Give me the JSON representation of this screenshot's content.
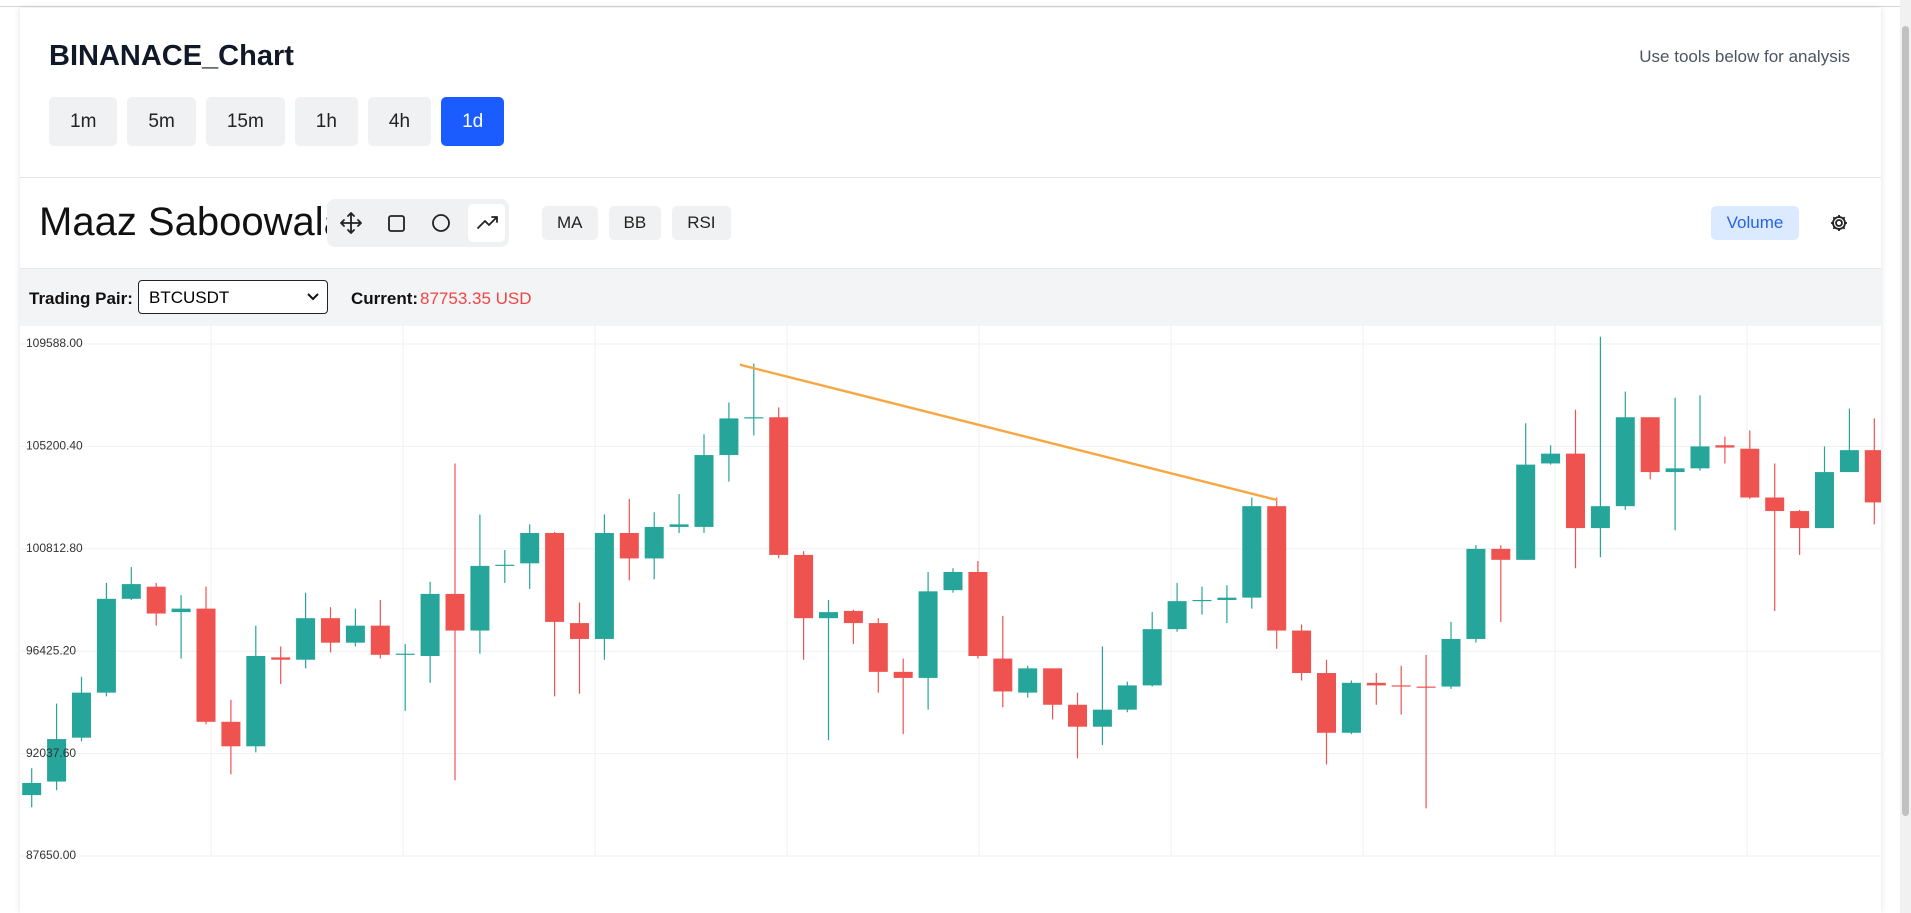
{
  "header": {
    "title": "BINANACE_Chart",
    "hint": "Use tools below for analysis",
    "timeframes": [
      "1m",
      "5m",
      "15m",
      "1h",
      "4h",
      "1d"
    ],
    "active_timeframe": 5
  },
  "toolbar": {
    "user": "Maaz Saboowala",
    "indicators": [
      "MA",
      "BB",
      "RSI"
    ],
    "volume": "Volume"
  },
  "pair_bar": {
    "label": "Trading Pair:",
    "pair": "BTCUSDT",
    "current_label": "Current:",
    "current_value": "87753.35 USD"
  },
  "chart_data": {
    "type": "candlestick",
    "up_color": "#26a69a",
    "down_color": "#ef5350",
    "grid": true,
    "ylim": [
      87650,
      109588
    ],
    "yticks": [
      {
        "value": 87650,
        "label": "87650.00"
      },
      {
        "value": 92037.6,
        "label": "92037.60"
      },
      {
        "value": 96425.2,
        "label": "96425.20"
      },
      {
        "value": 100812.8,
        "label": "100812.80"
      },
      {
        "value": 105200.4,
        "label": "105200.40"
      },
      {
        "value": 109588,
        "label": "109588.00"
      }
    ],
    "open": [
      90260,
      90840,
      92720,
      94650,
      98670,
      99190,
      98100,
      98250,
      93400,
      92350,
      96160,
      96060,
      97840,
      96790,
      97520,
      96270,
      96220,
      98880,
      97310,
      100080,
      100190,
      101490,
      97630,
      96950,
      101490,
      100400,
      101750,
      101750,
      104830,
      106400,
      106450,
      100550,
      97840,
      98150,
      97630,
      95540,
      95280,
      99040,
      99820,
      96110,
      94650,
      95690,
      94130,
      93190,
      93920,
      94960,
      97370,
      98570,
      98620,
      98720,
      102640,
      97310,
      95490,
      92930,
      95070,
      94960,
      94910,
      94910,
      96950,
      100810,
      100340,
      104470,
      104890,
      101700,
      102640,
      106450,
      104100,
      104260,
      105250,
      105100,
      103010,
      102430,
      101700,
      104100,
      105040
    ],
    "high": [
      91410,
      94180,
      95330,
      99350,
      100030,
      99350,
      98830,
      99190,
      94340,
      97520,
      96630,
      98930,
      98310,
      98250,
      98620,
      96740,
      99400,
      104470,
      102280,
      100760,
      101860,
      101540,
      98510,
      102280,
      102950,
      102380,
      103160,
      105720,
      107080,
      108750,
      106870,
      100710,
      98620,
      98200,
      97840,
      96110,
      99820,
      99980,
      100290,
      97940,
      95800,
      95690,
      94650,
      96630,
      95120,
      98100,
      99350,
      99190,
      99250,
      103010,
      103010,
      97570,
      96060,
      95170,
      95490,
      95800,
      96270,
      97680,
      100970,
      100970,
      106190,
      105250,
      106770,
      109900,
      107550,
      106450,
      107290,
      107390,
      105620,
      105880,
      104470,
      102480,
      105200,
      106820,
      106400
    ],
    "low": [
      89740,
      90470,
      92560,
      94490,
      98620,
      97520,
      96110,
      93290,
      91150,
      92090,
      95020,
      95690,
      96370,
      96630,
      96110,
      93870,
      95070,
      90890,
      96320,
      99350,
      99090,
      94490,
      94600,
      96060,
      99460,
      99510,
      101490,
      101490,
      103690,
      105670,
      100400,
      96060,
      92610,
      96740,
      94650,
      92870,
      93920,
      98930,
      96110,
      94020,
      94440,
      93500,
      91830,
      92400,
      93810,
      94910,
      97260,
      97990,
      97630,
      98250,
      96530,
      95170,
      91570,
      92870,
      94130,
      93710,
      89690,
      94810,
      96790,
      97680,
      100340,
      104420,
      99980,
      100450,
      102480,
      103790,
      101600,
      104160,
      104470,
      102950,
      98150,
      100550,
      101700,
      104100,
      101860
    ],
    "close": [
      90780,
      92660,
      94650,
      98670,
      99300,
      98040,
      98250,
      93400,
      92350,
      96220,
      96060,
      97840,
      96790,
      97520,
      96270,
      96320,
      98880,
      97310,
      100080,
      100130,
      101490,
      97680,
      96950,
      101490,
      100400,
      101750,
      101860,
      104830,
      106400,
      106450,
      100550,
      97840,
      98100,
      97630,
      95540,
      95280,
      98990,
      99820,
      96220,
      94700,
      95690,
      94130,
      93190,
      93920,
      94960,
      97370,
      98570,
      98620,
      98720,
      102640,
      97310,
      95490,
      92930,
      95070,
      94960,
      94910,
      94860,
      96950,
      100810,
      100340,
      104420,
      104890,
      101700,
      102640,
      106450,
      104100,
      104260,
      105200,
      105150,
      103010,
      102430,
      101700,
      104100,
      105040,
      102800
    ],
    "trendline": {
      "x": [
        28.44,
        50.02
      ],
      "values": [
        108700,
        102900
      ],
      "color": "#f7a642"
    }
  }
}
